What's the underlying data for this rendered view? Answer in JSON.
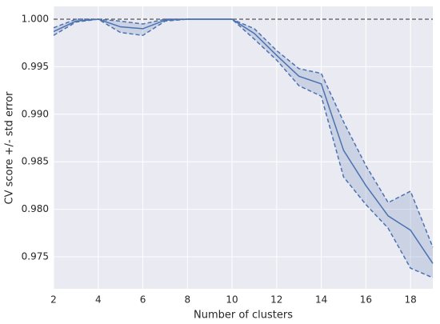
{
  "chart_data": {
    "type": "line",
    "xlabel": "Number of clusters",
    "ylabel": "CV score +/- std error",
    "x": [
      2,
      3,
      4,
      5,
      6,
      7,
      8,
      9,
      10,
      11,
      12,
      13,
      14,
      15,
      16,
      17,
      18,
      19
    ],
    "values": [
      0.9987,
      0.9998,
      1.0,
      0.9992,
      0.999,
      0.9999,
      1.0,
      1.0,
      1.0,
      0.9985,
      0.9962,
      0.994,
      0.9932,
      0.9862,
      0.9825,
      0.9793,
      0.9778,
      0.9743
    ],
    "upper": [
      0.9991,
      1.0,
      1.0,
      0.9998,
      0.9995,
      1.0,
      1.0,
      1.0,
      1.0,
      0.999,
      0.9967,
      0.9948,
      0.9943,
      0.9892,
      0.9846,
      0.9807,
      0.9819,
      0.976
    ],
    "lower": [
      0.9983,
      0.9997,
      1.0,
      0.9986,
      0.9983,
      0.9998,
      1.0,
      1.0,
      1.0,
      0.9979,
      0.9957,
      0.993,
      0.9919,
      0.9834,
      0.9805,
      0.978,
      0.9738,
      0.9728
    ],
    "hline": 1.0,
    "color": "#4c72b0",
    "hline_color": "#555555",
    "xlim": [
      2,
      19
    ],
    "ylim": [
      0.97163,
      1.00135
    ],
    "xticks": [
      2,
      4,
      6,
      8,
      10,
      12,
      14,
      16,
      18
    ],
    "yticks": [
      {
        "value": 0.975,
        "label": "0.975"
      },
      {
        "value": 0.98,
        "label": "0.980"
      },
      {
        "value": 0.985,
        "label": "0.985"
      },
      {
        "value": 0.99,
        "label": "0.990"
      },
      {
        "value": 0.995,
        "label": "0.995"
      },
      {
        "value": 1.0,
        "label": "1.000"
      }
    ],
    "grid": true
  }
}
